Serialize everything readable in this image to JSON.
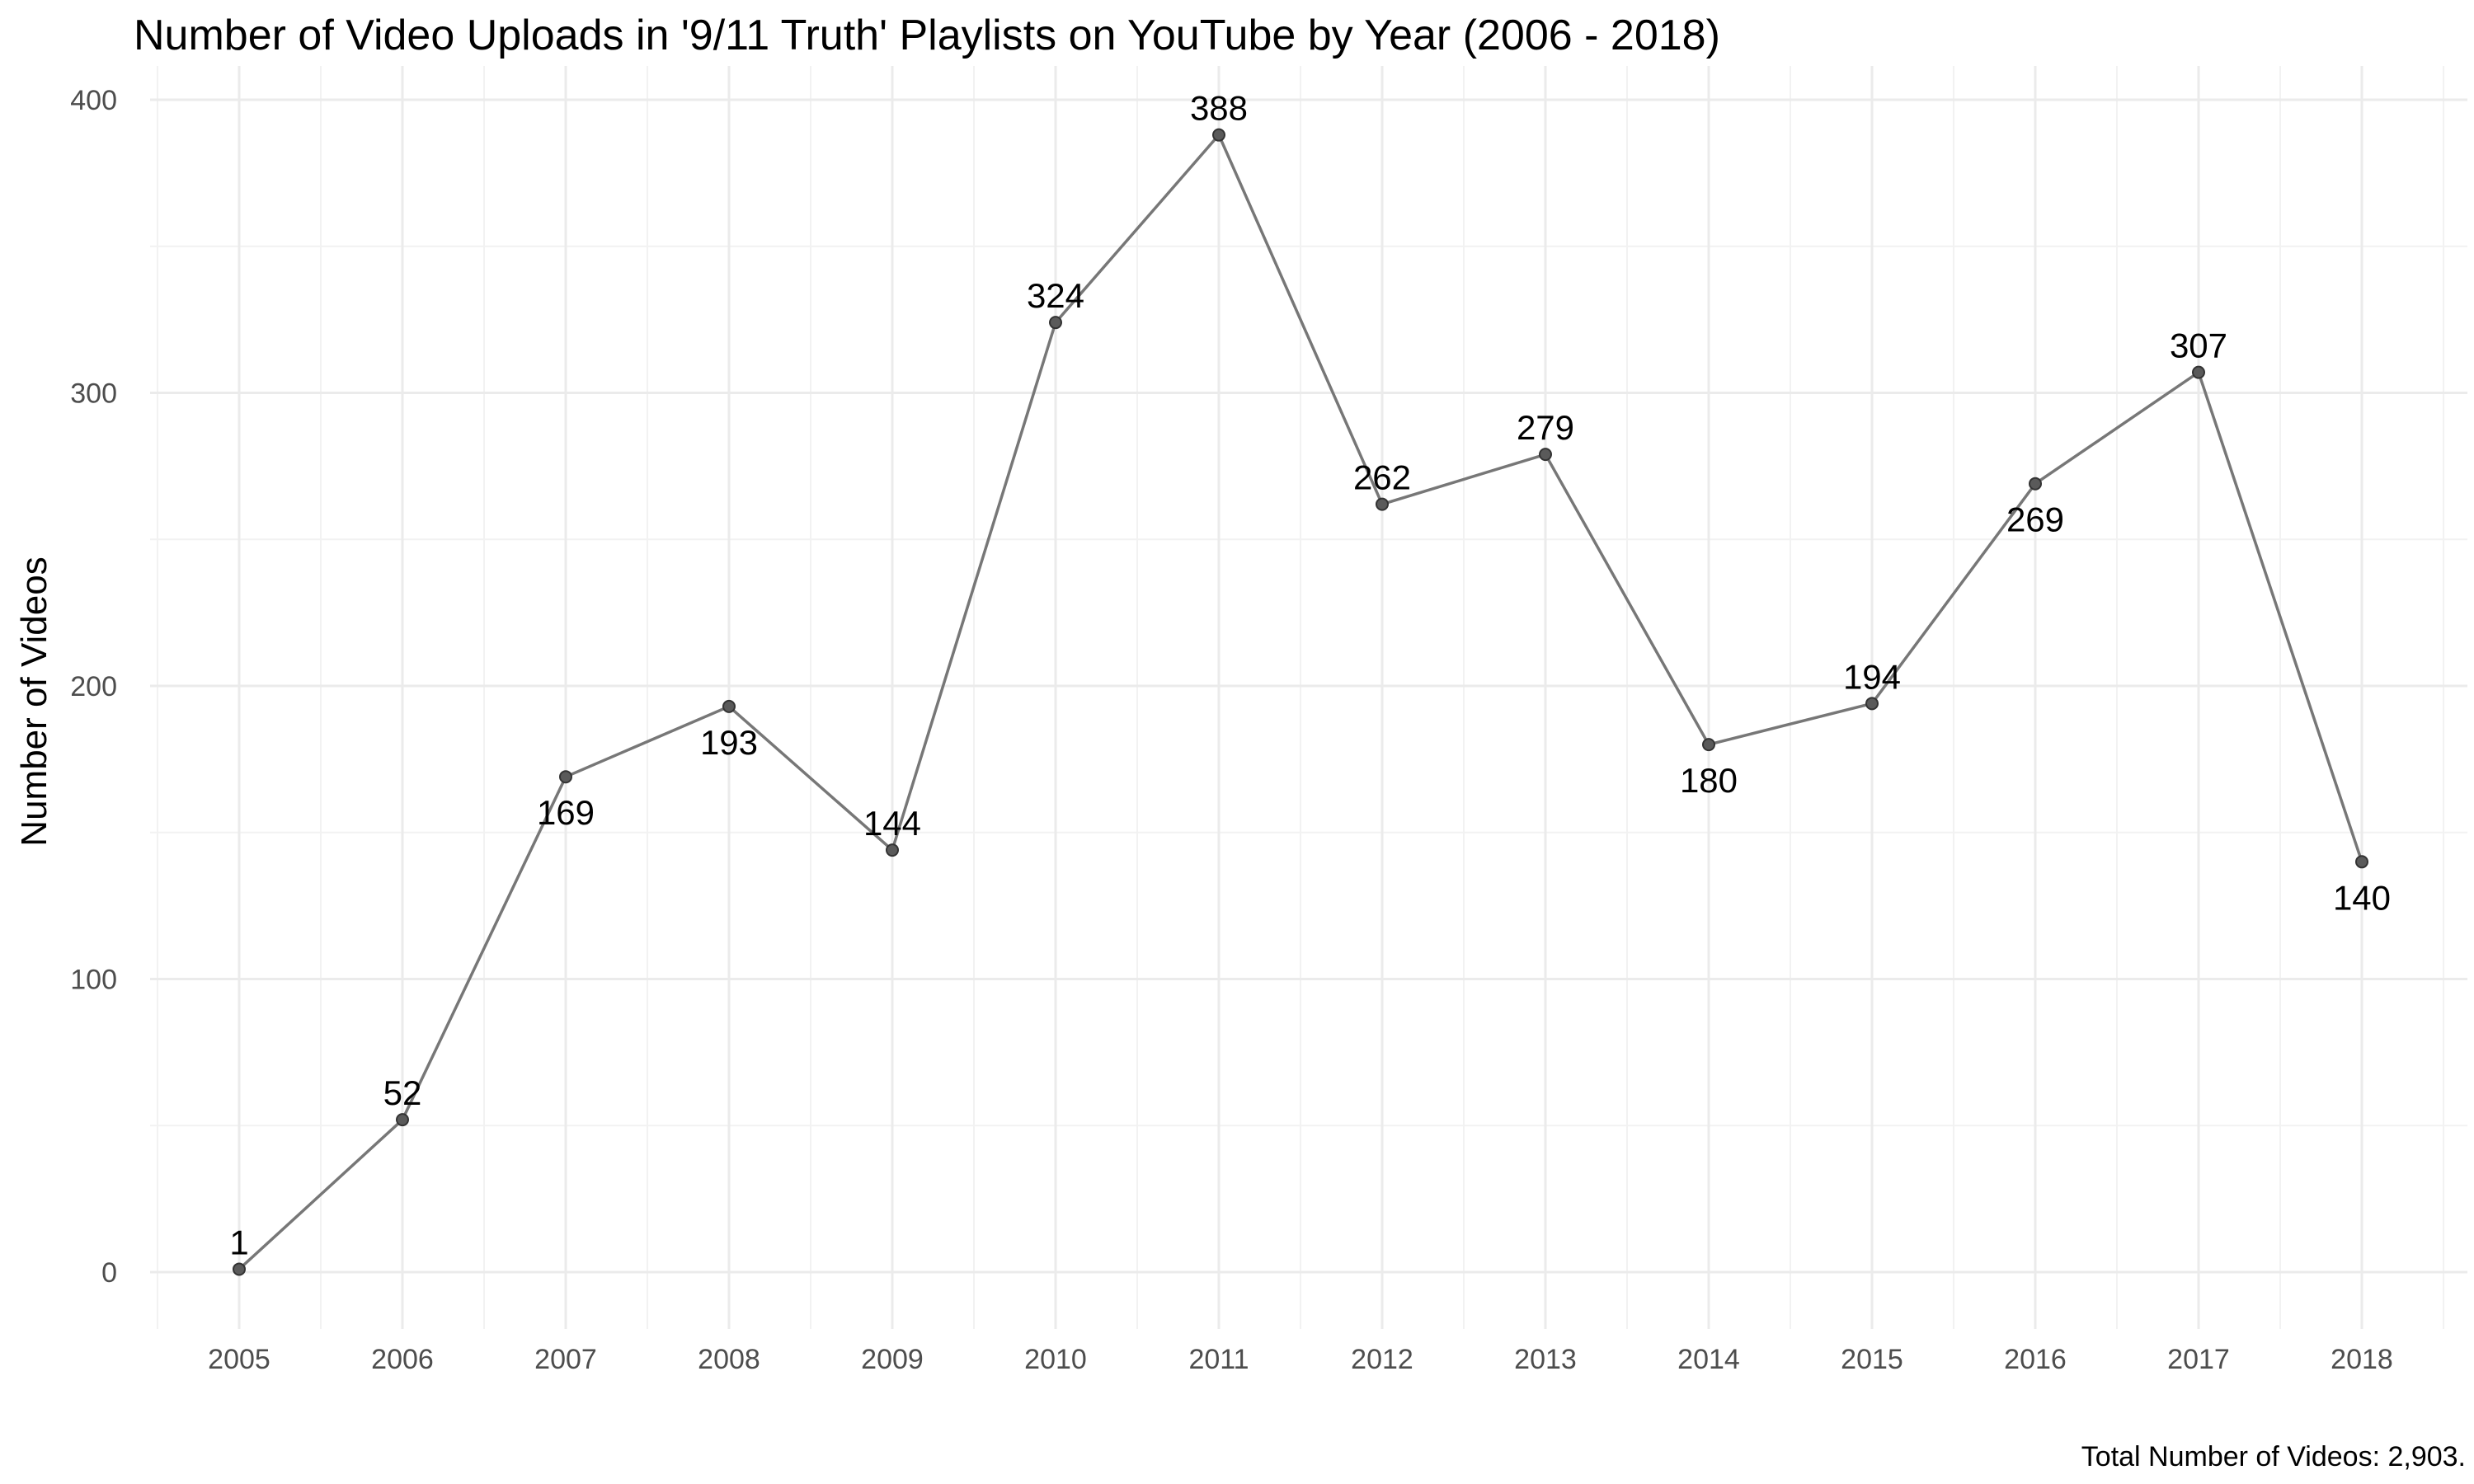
{
  "chart_data": {
    "type": "line",
    "title": "Number of Video Uploads in '9/11 Truth' Playlists on YouTube by Year (2006 - 2018)",
    "xlabel": "",
    "ylabel": "Number of Videos",
    "caption": "Total Number of Videos: 2,903.",
    "x": [
      "2005",
      "2006",
      "2007",
      "2008",
      "2009",
      "2010",
      "2011",
      "2012",
      "2013",
      "2014",
      "2015",
      "2016",
      "2017",
      "2018"
    ],
    "series": [
      {
        "values": [
          1,
          52,
          169,
          193,
          144,
          324,
          388,
          262,
          279,
          180,
          194,
          269,
          307,
          140
        ],
        "label_position": [
          "above",
          "above",
          "below",
          "below",
          "above",
          "above",
          "above",
          "above",
          "above",
          "below",
          "above",
          "below",
          "above",
          "below"
        ]
      }
    ],
    "ylim": [
      0,
      400
    ],
    "y_ticks": [
      "0",
      "100",
      "200",
      "300",
      "400"
    ],
    "grid": true,
    "legend": "none",
    "colors": {
      "line": "#777777",
      "point": "#5a5a5a",
      "grid": "#ebebeb",
      "background": "#ffffff"
    }
  }
}
